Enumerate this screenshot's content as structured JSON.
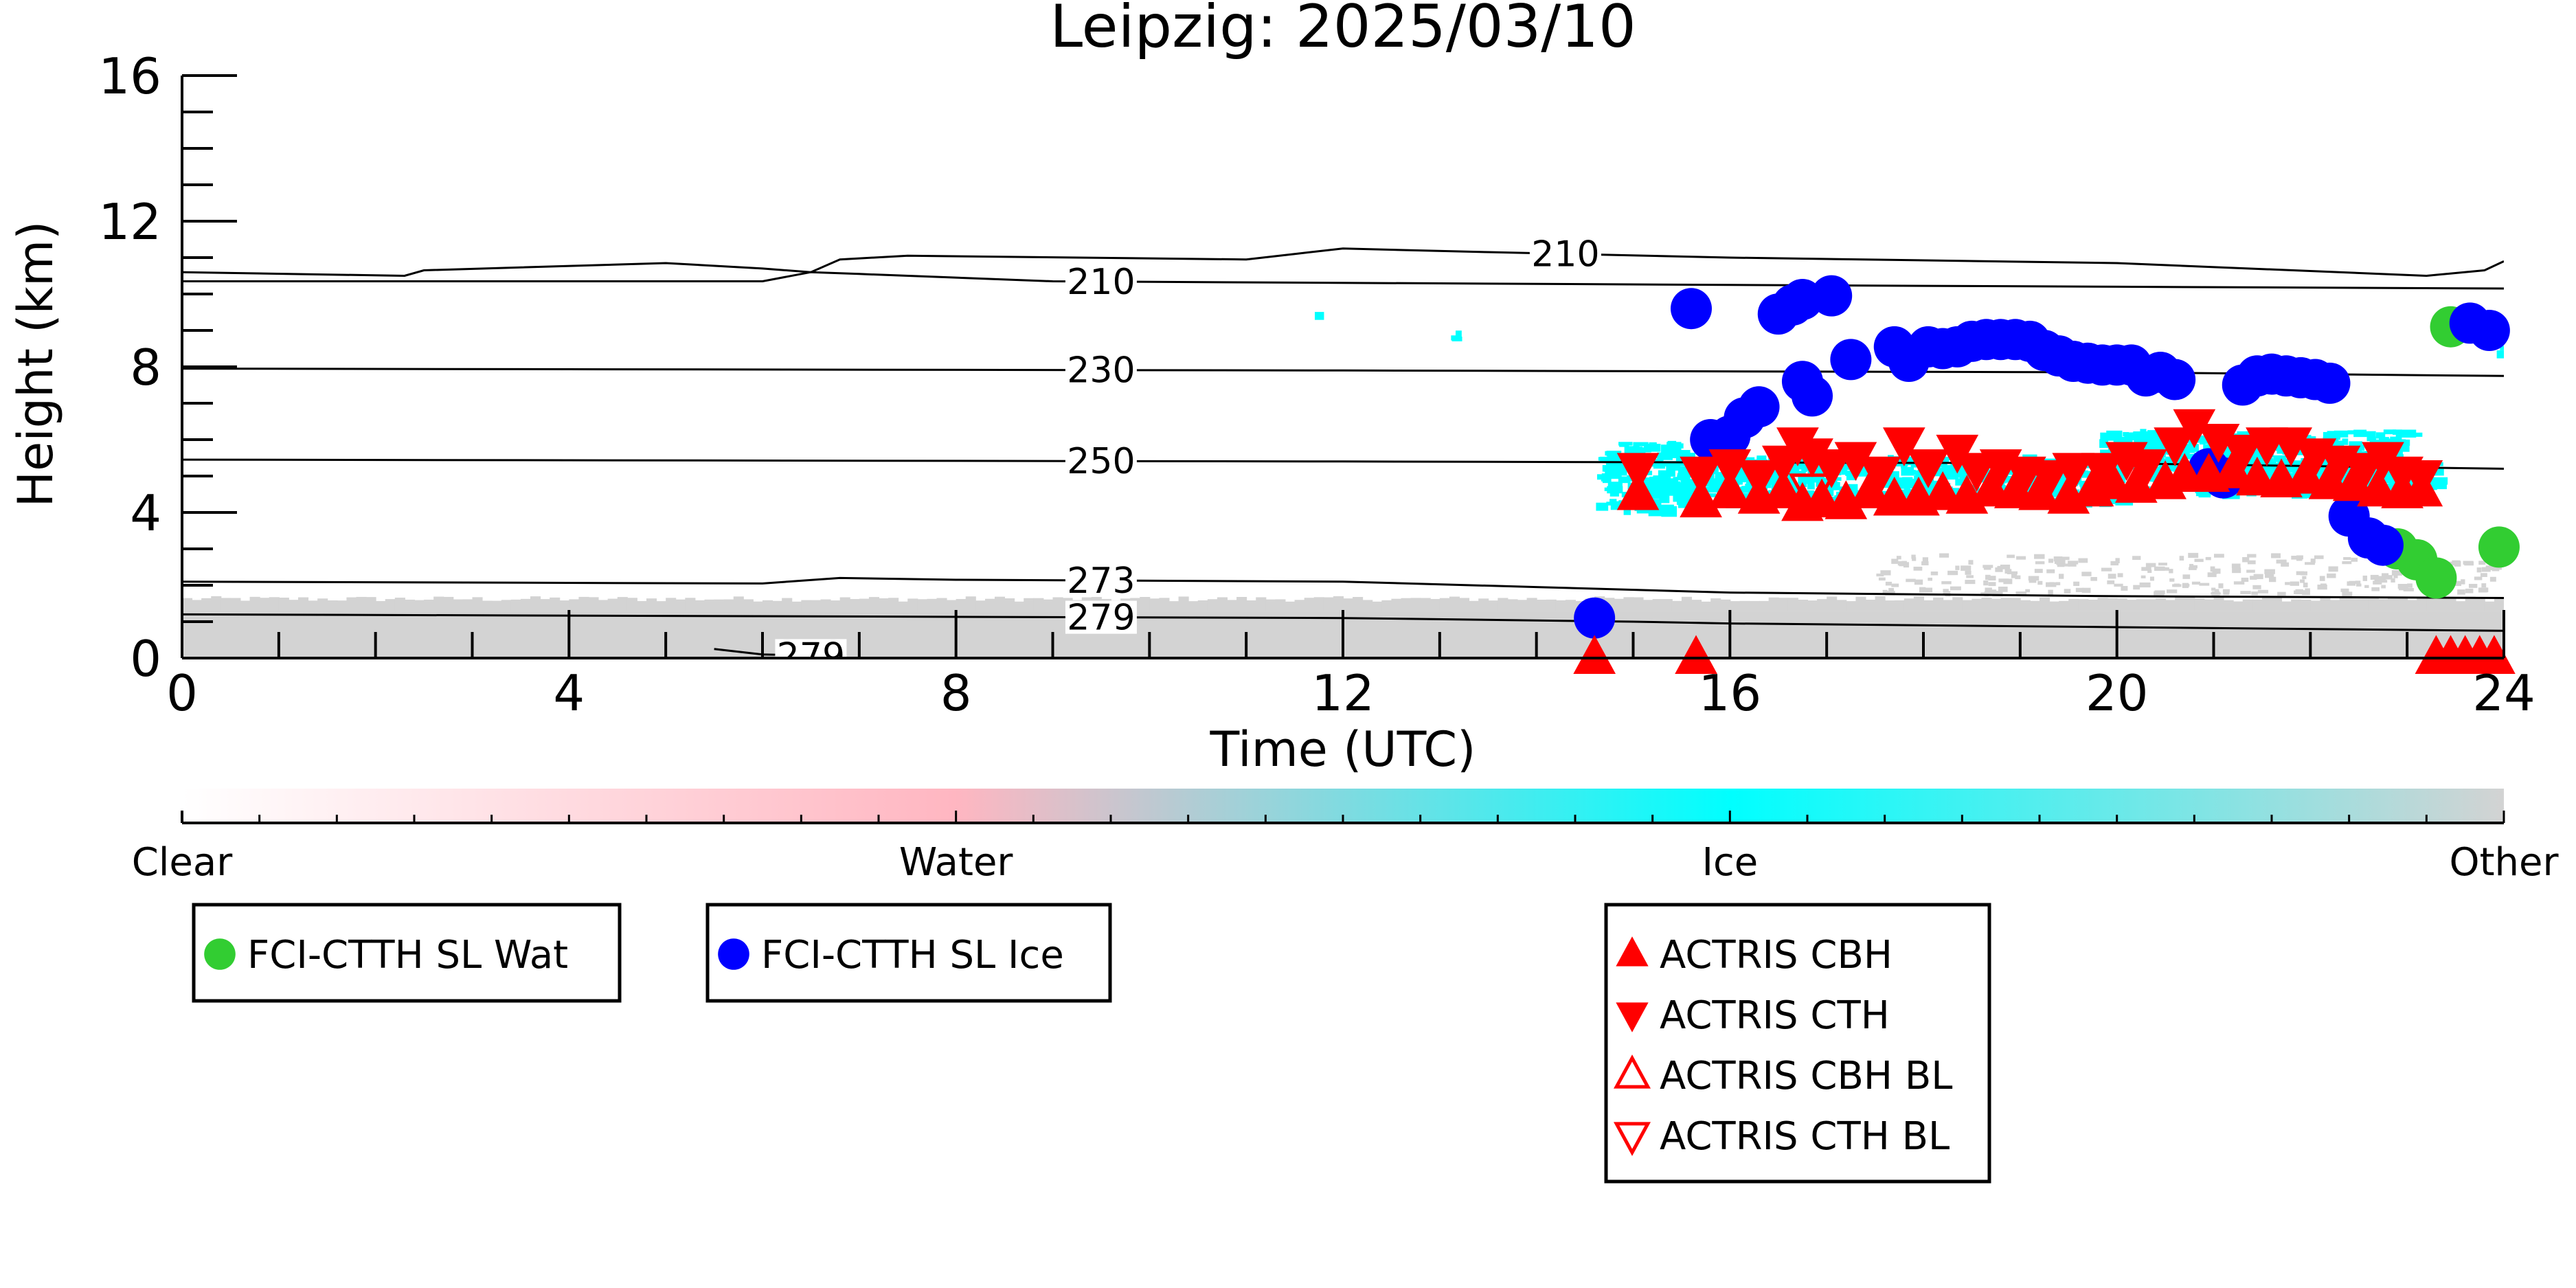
{
  "chart_data": {
    "type": "scatter",
    "title": "Leipzig: 2025/03/10",
    "xlabel": "Time (UTC)",
    "ylabel": "Height (km)",
    "xlim": [
      0,
      24
    ],
    "ylim": [
      0,
      16
    ],
    "x_ticks": [
      0,
      4,
      8,
      12,
      16,
      20,
      24
    ],
    "y_ticks": [
      0,
      4,
      8,
      12,
      16
    ],
    "x_minor_step": 1,
    "y_minor_step": 1,
    "grid": false,
    "colorbar": {
      "labels": [
        "Clear",
        "Water",
        "Ice",
        "Other"
      ],
      "colors": [
        "#ffffff",
        "#ffb6c1",
        "#00ffff",
        "#d3d3d3"
      ]
    },
    "background": {
      "ground_band_top_km": 1.3,
      "ground_band_color": "#d3d3d3",
      "noise_color": "#d3d3d3",
      "ice_color": "#00ffff"
    },
    "contours": [
      {
        "label": "210",
        "label_at": 14.3,
        "points": [
          [
            0,
            10.6
          ],
          [
            2.3,
            10.5
          ],
          [
            2.5,
            10.65
          ],
          [
            5,
            10.85
          ],
          [
            6,
            10.7
          ],
          [
            6.5,
            10.6
          ],
          [
            6.8,
            10.95
          ],
          [
            7.5,
            11.05
          ],
          [
            11,
            10.95
          ],
          [
            11.5,
            11.1
          ],
          [
            12,
            11.25
          ],
          [
            13.5,
            11.15
          ],
          [
            16,
            11.0
          ],
          [
            20,
            10.85
          ],
          [
            23.2,
            10.5
          ],
          [
            23.8,
            10.65
          ],
          [
            24,
            10.9
          ]
        ]
      },
      {
        "label": "210",
        "label_at": 9.5,
        "points": [
          [
            0,
            10.35
          ],
          [
            6,
            10.35
          ],
          [
            6.5,
            10.6
          ],
          [
            7,
            10.55
          ],
          [
            9,
            10.35
          ],
          [
            16,
            10.25
          ],
          [
            20,
            10.2
          ],
          [
            24,
            10.15
          ]
        ]
      },
      {
        "label": "230",
        "label_at": 9.5,
        "points": [
          [
            0,
            7.95
          ],
          [
            12,
            7.9
          ],
          [
            20,
            7.85
          ],
          [
            24,
            7.75
          ]
        ]
      },
      {
        "label": "250",
        "label_at": 9.5,
        "points": [
          [
            0,
            5.45
          ],
          [
            12,
            5.4
          ],
          [
            20,
            5.35
          ],
          [
            24,
            5.2
          ]
        ]
      },
      {
        "label": "273",
        "label_at": 9.5,
        "points": [
          [
            0,
            2.1
          ],
          [
            6,
            2.05
          ],
          [
            6.8,
            2.2
          ],
          [
            8,
            2.15
          ],
          [
            12,
            2.1
          ],
          [
            14,
            1.95
          ],
          [
            16,
            1.8
          ],
          [
            20,
            1.7
          ],
          [
            24,
            1.65
          ]
        ]
      },
      {
        "label": "279",
        "label_at": 9.5,
        "points": [
          [
            0,
            1.2
          ],
          [
            12,
            1.1
          ],
          [
            15,
            1.0
          ],
          [
            16,
            0.95
          ],
          [
            20,
            0.85
          ],
          [
            24,
            0.75
          ]
        ]
      },
      {
        "label": "279",
        "label_at": 6.5,
        "points": [
          [
            5.5,
            0.25
          ],
          [
            6,
            0.1
          ],
          [
            6.8,
            0.05
          ]
        ]
      }
    ],
    "series": [
      {
        "name": "FCI-CTTH SL Wat",
        "marker": "circle",
        "color": "#32cd32",
        "points": [
          [
            23.45,
            9.1
          ],
          [
            22.9,
            3.0
          ],
          [
            23.1,
            2.7
          ],
          [
            23.3,
            2.2
          ],
          [
            23.95,
            3.05
          ]
        ]
      },
      {
        "name": "FCI-CTTH SL Ice",
        "marker": "circle",
        "color": "#0000ff",
        "points": [
          [
            14.6,
            1.1
          ],
          [
            15.6,
            9.6
          ],
          [
            15.8,
            6.0
          ],
          [
            16.0,
            6.1
          ],
          [
            16.15,
            6.6
          ],
          [
            16.3,
            6.9
          ],
          [
            16.5,
            9.45
          ],
          [
            16.65,
            9.7
          ],
          [
            16.75,
            9.85
          ],
          [
            16.75,
            7.6
          ],
          [
            16.85,
            7.2
          ],
          [
            17.05,
            9.95
          ],
          [
            17.25,
            8.2
          ],
          [
            17.7,
            8.55
          ],
          [
            17.85,
            8.15
          ],
          [
            18.05,
            8.55
          ],
          [
            18.2,
            8.5
          ],
          [
            18.35,
            8.55
          ],
          [
            18.5,
            8.7
          ],
          [
            18.65,
            8.75
          ],
          [
            18.8,
            8.75
          ],
          [
            18.95,
            8.75
          ],
          [
            19.1,
            8.7
          ],
          [
            19.25,
            8.45
          ],
          [
            19.4,
            8.3
          ],
          [
            19.55,
            8.15
          ],
          [
            19.7,
            8.1
          ],
          [
            19.85,
            8.05
          ],
          [
            20.0,
            8.05
          ],
          [
            20.15,
            8.05
          ],
          [
            20.3,
            7.75
          ],
          [
            20.45,
            7.85
          ],
          [
            20.6,
            7.65
          ],
          [
            20.95,
            5.2
          ],
          [
            21.1,
            4.95
          ],
          [
            21.3,
            7.5
          ],
          [
            21.45,
            7.75
          ],
          [
            21.6,
            7.8
          ],
          [
            21.75,
            7.75
          ],
          [
            21.9,
            7.7
          ],
          [
            22.05,
            7.65
          ],
          [
            22.2,
            7.55
          ],
          [
            22.4,
            3.9
          ],
          [
            22.6,
            3.3
          ],
          [
            22.75,
            3.1
          ],
          [
            23.65,
            9.2
          ],
          [
            23.85,
            9.0
          ]
        ]
      },
      {
        "name": "ACTRIS CBH",
        "marker": "triangle-up",
        "color": "#ff0000",
        "filled": true,
        "points": [
          [
            14.6,
            0.0
          ],
          [
            15.65,
            0.0
          ],
          [
            15.05,
            4.5
          ],
          [
            15.7,
            4.3
          ],
          [
            16.0,
            4.55
          ],
          [
            16.3,
            4.4
          ],
          [
            16.55,
            4.55
          ],
          [
            16.75,
            4.2
          ],
          [
            16.95,
            4.3
          ],
          [
            17.2,
            4.25
          ],
          [
            17.45,
            4.55
          ],
          [
            17.7,
            4.35
          ],
          [
            17.95,
            4.35
          ],
          [
            18.2,
            4.5
          ],
          [
            18.45,
            4.4
          ],
          [
            18.7,
            4.6
          ],
          [
            18.95,
            4.55
          ],
          [
            19.2,
            4.5
          ],
          [
            19.5,
            4.4
          ],
          [
            19.75,
            4.6
          ],
          [
            19.95,
            4.8
          ],
          [
            20.2,
            4.7
          ],
          [
            20.5,
            4.8
          ],
          [
            20.7,
            5.0
          ],
          [
            20.95,
            5.0
          ],
          [
            21.2,
            5.1
          ],
          [
            21.45,
            4.9
          ],
          [
            21.7,
            4.85
          ],
          [
            21.95,
            4.95
          ],
          [
            22.2,
            4.8
          ],
          [
            22.45,
            4.75
          ],
          [
            22.7,
            4.6
          ],
          [
            22.95,
            4.55
          ],
          [
            23.15,
            4.6
          ],
          [
            23.3,
            0.0
          ],
          [
            23.45,
            0.0
          ],
          [
            23.6,
            0.0
          ],
          [
            23.75,
            0.0
          ],
          [
            23.9,
            0.0
          ]
        ]
      },
      {
        "name": "ACTRIS CTH",
        "marker": "triangle-down",
        "color": "#ff0000",
        "filled": true,
        "points": [
          [
            15.05,
            5.2
          ],
          [
            15.7,
            5.1
          ],
          [
            16.0,
            5.3
          ],
          [
            16.3,
            5.0
          ],
          [
            16.55,
            5.4
          ],
          [
            16.7,
            5.9
          ],
          [
            16.85,
            5.6
          ],
          [
            17.05,
            5.3
          ],
          [
            17.3,
            5.5
          ],
          [
            17.55,
            5.1
          ],
          [
            17.8,
            5.9
          ],
          [
            18.05,
            5.3
          ],
          [
            18.35,
            5.7
          ],
          [
            18.55,
            5.2
          ],
          [
            18.8,
            5.3
          ],
          [
            19.05,
            5.1
          ],
          [
            19.3,
            5.0
          ],
          [
            19.55,
            5.2
          ],
          [
            19.85,
            5.2
          ],
          [
            20.1,
            5.5
          ],
          [
            20.3,
            5.3
          ],
          [
            20.6,
            5.9
          ],
          [
            20.8,
            6.4
          ],
          [
            21.05,
            6.0
          ],
          [
            21.3,
            5.7
          ],
          [
            21.55,
            5.9
          ],
          [
            21.8,
            5.9
          ],
          [
            22.05,
            5.6
          ],
          [
            22.3,
            5.4
          ],
          [
            22.55,
            5.2
          ],
          [
            22.75,
            5.5
          ],
          [
            22.95,
            5.1
          ],
          [
            23.15,
            5.0
          ]
        ]
      },
      {
        "name": "ACTRIS CBH BL",
        "marker": "triangle-up",
        "color": "#ff0000",
        "filled": false,
        "points": []
      },
      {
        "name": "ACTRIS CTH BL",
        "marker": "triangle-down",
        "color": "#ff0000",
        "filled": false,
        "points": [
          [
            16.85,
            4.6
          ]
        ]
      }
    ],
    "legends": [
      {
        "entries": [
          "FCI-CTTH SL Wat"
        ]
      },
      {
        "entries": [
          "FCI-CTTH SL Ice"
        ]
      },
      {
        "entries": [
          "ACTRIS CBH",
          "ACTRIS CTH",
          "ACTRIS CBH BL",
          "ACTRIS CTH BL"
        ]
      }
    ]
  }
}
